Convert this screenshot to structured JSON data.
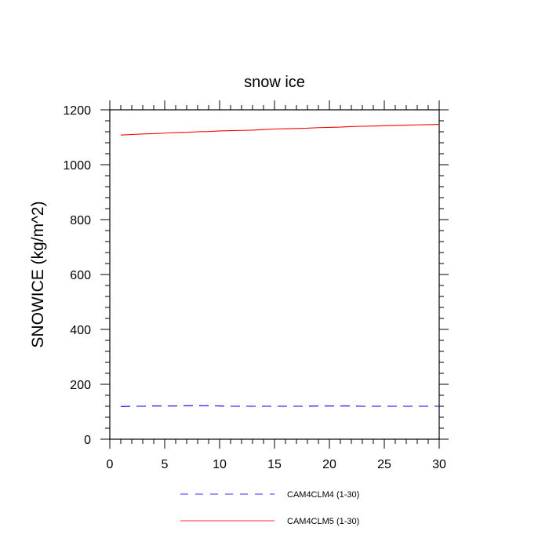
{
  "chart_data": {
    "type": "line",
    "title": "snow ice",
    "xlabel": "",
    "ylabel": "SNOWICE  (kg/m^2)",
    "xlim": [
      0,
      30
    ],
    "ylim": [
      0,
      1200
    ],
    "x_ticks": [
      0,
      5,
      10,
      15,
      20,
      25,
      30
    ],
    "y_ticks": [
      0,
      200,
      400,
      600,
      800,
      1000,
      1200
    ],
    "grid": false,
    "legend_position": "bottom",
    "x": [
      1,
      2,
      3,
      4,
      5,
      6,
      7,
      8,
      9,
      10,
      11,
      12,
      13,
      14,
      15,
      16,
      17,
      18,
      19,
      20,
      21,
      22,
      23,
      24,
      25,
      26,
      27,
      28,
      29,
      30
    ],
    "series": [
      {
        "name": "CAM4CLM4 (1-30)",
        "color": "#0000ff",
        "dash": "dashed",
        "values": [
          119,
          120,
          120,
          121,
          121,
          121,
          122,
          122,
          122,
          121,
          120,
          120,
          120,
          120,
          120,
          120,
          120,
          120,
          121,
          121,
          121,
          121,
          120,
          120,
          120,
          120,
          120,
          120,
          120,
          120
        ]
      },
      {
        "name": "CAM4CLM5 (1-30)",
        "color": "#ff0000",
        "dash": "solid",
        "values": [
          1108,
          1110,
          1112,
          1113,
          1115,
          1117,
          1118,
          1120,
          1121,
          1123,
          1124,
          1125,
          1126,
          1128,
          1130,
          1131,
          1132,
          1133,
          1135,
          1136,
          1137,
          1139,
          1140,
          1141,
          1142,
          1143,
          1144,
          1145,
          1146,
          1147
        ]
      }
    ]
  }
}
